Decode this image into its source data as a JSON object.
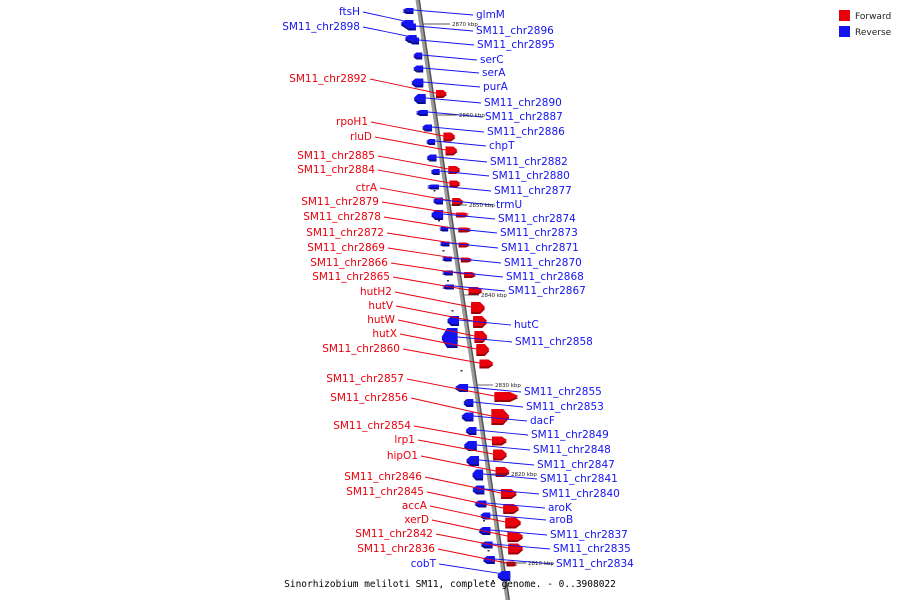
{
  "colors": {
    "forward": "#e8000d",
    "reverse": "#1414f0",
    "axis": "#9a9a9a"
  },
  "legend": [
    {
      "label": "Forward",
      "strand": "forward"
    },
    {
      "label": "Reverse",
      "strand": "reverse"
    }
  ],
  "caption": "Sinorhizobium meliloti SM11, complete genome. - 0..3908022",
  "ticks": [
    "2870 kbp",
    "2860 kbp",
    "2850 kbp",
    "2840 kbp",
    "2830 kbp",
    "2820 kbp",
    "2810 kbp"
  ],
  "forward_genes": [
    "SM11_chr2892",
    "rpoH1",
    "rluD",
    "SM11_chr2885",
    "SM11_chr2884",
    "ctrA",
    "SM11_chr2879",
    "SM11_chr2878",
    "SM11_chr2872",
    "SM11_chr2869",
    "SM11_chr2866",
    "SM11_chr2865",
    "hutH2",
    "hutV",
    "hutW",
    "hutX",
    "SM11_chr2860",
    "SM11_chr2857",
    "SM11_chr2856",
    "SM11_chr2854",
    "lrp1",
    "hipO1",
    "SM11_chr2846",
    "SM11_chr2845",
    "accA",
    "xerD",
    "SM11_chr2842",
    "SM11_chr2836"
  ],
  "reverse_genes_left": [
    "ftsH",
    "SM11_chr2898",
    "cobT"
  ],
  "reverse_genes_right": [
    "glmM",
    "SM11_chr2896",
    "SM11_chr2895",
    "serC",
    "serA",
    "purA",
    "SM11_chr2890",
    "SM11_chr2887",
    "SM11_chr2886",
    "chpT",
    "SM11_chr2882",
    "SM11_chr2880",
    "SM11_chr2877",
    "trmU",
    "SM11_chr2874",
    "SM11_chr2873",
    "SM11_chr2871",
    "SM11_chr2870",
    "SM11_chr2868",
    "SM11_chr2867",
    "hutC",
    "SM11_chr2858",
    "SM11_chr2855",
    "SM11_chr2853",
    "dacF",
    "SM11_chr2849",
    "SM11_chr2848",
    "SM11_chr2847",
    "SM11_chr2841",
    "SM11_chr2840",
    "aroK",
    "aroB",
    "SM11_chr2837",
    "SM11_chr2835",
    "SM11_chr2834"
  ]
}
